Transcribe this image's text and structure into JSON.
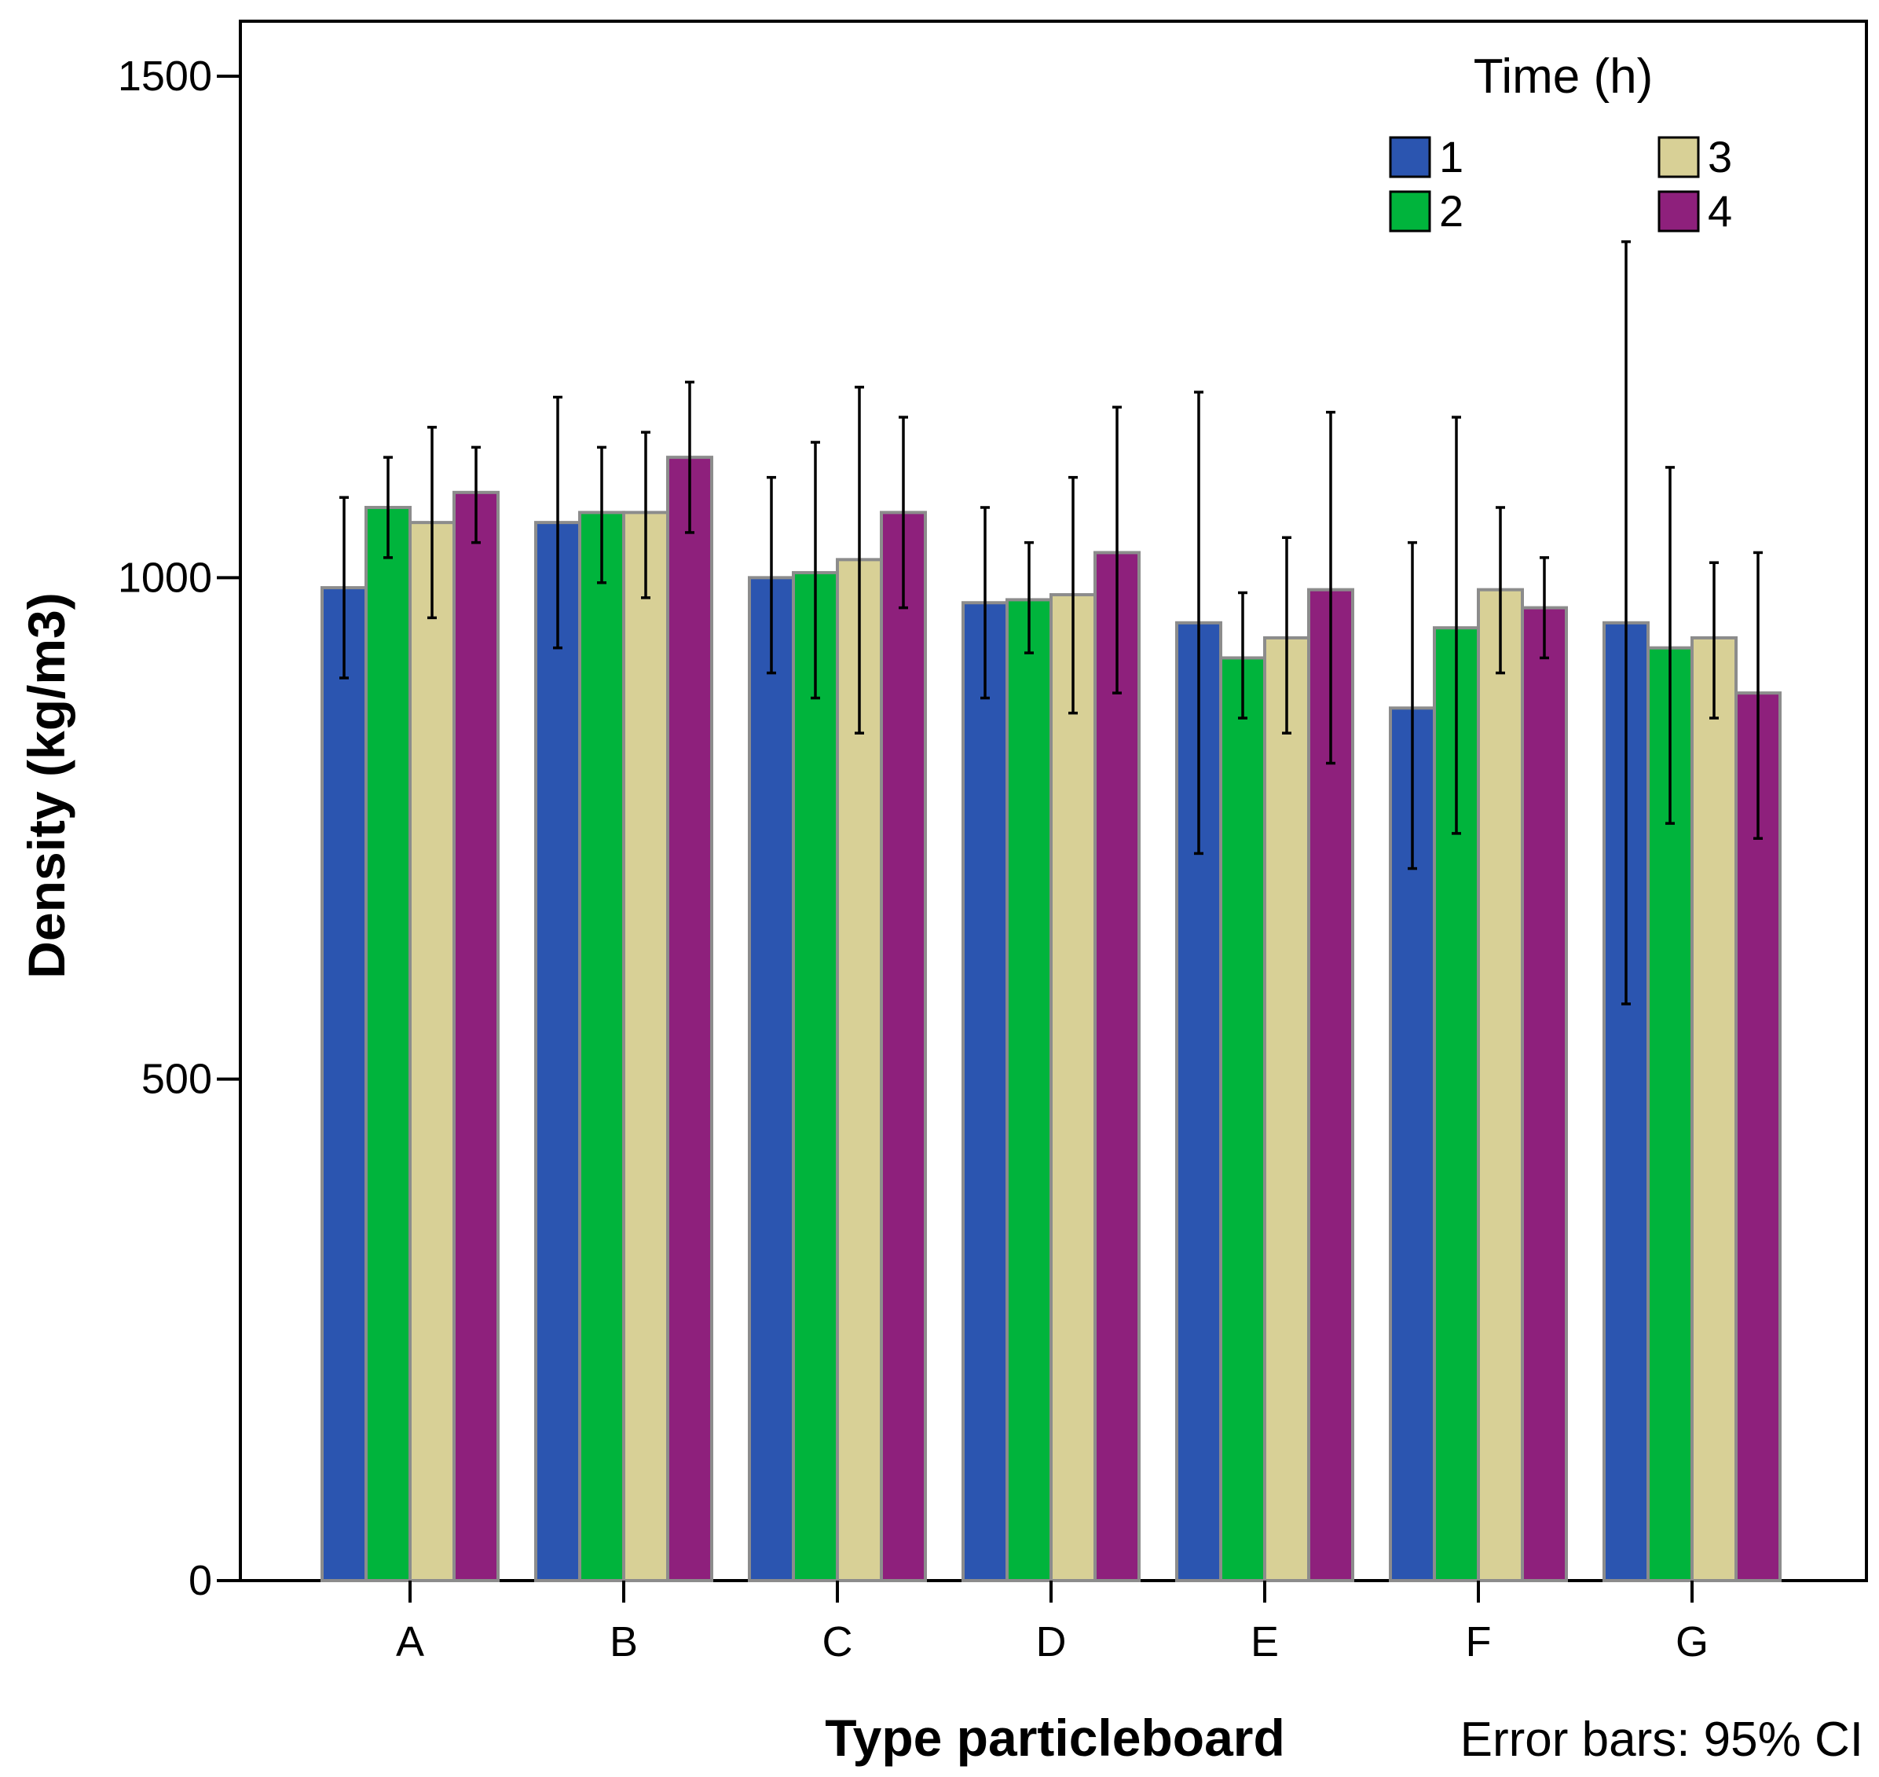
{
  "chart_data": {
    "type": "bar",
    "title": "",
    "xlabel": "Type particleboard",
    "ylabel": "Density (kg/m3)",
    "ylim": [
      0,
      1500
    ],
    "yticks": [
      0,
      500,
      1000,
      1500
    ],
    "grid": false,
    "legend_title": "Time (h)",
    "legend_position": "top-right",
    "note": "Error bars: 95% CI",
    "categories": [
      "A",
      "B",
      "C",
      "D",
      "E",
      "F",
      "G"
    ],
    "series": [
      {
        "name": "1",
        "color": "#2b55b0",
        "values": [
          990,
          1055,
          1000,
          975,
          955,
          870,
          955
        ],
        "ci_low": [
          900,
          930,
          905,
          880,
          725,
          710,
          575
        ],
        "ci_high": [
          1080,
          1180,
          1100,
          1070,
          1185,
          1035,
          1335
        ]
      },
      {
        "name": "2",
        "color": "#00b43c",
        "values": [
          1070,
          1065,
          1005,
          978,
          920,
          950,
          930
        ],
        "ci_low": [
          1020,
          995,
          880,
          925,
          860,
          745,
          755
        ],
        "ci_high": [
          1120,
          1130,
          1135,
          1035,
          985,
          1160,
          1110
        ]
      },
      {
        "name": "3",
        "color": "#d8d096",
        "values": [
          1055,
          1065,
          1018,
          983,
          940,
          988,
          940
        ],
        "ci_low": [
          960,
          980,
          845,
          865,
          845,
          905,
          860
        ],
        "ci_high": [
          1150,
          1145,
          1190,
          1100,
          1040,
          1070,
          1015
        ]
      },
      {
        "name": "4",
        "color": "#8e207c",
        "values": [
          1085,
          1120,
          1065,
          1025,
          988,
          970,
          885
        ],
        "ci_low": [
          1035,
          1045,
          970,
          885,
          815,
          920,
          740
        ],
        "ci_high": [
          1130,
          1195,
          1160,
          1170,
          1165,
          1020,
          1025
        ]
      }
    ]
  }
}
